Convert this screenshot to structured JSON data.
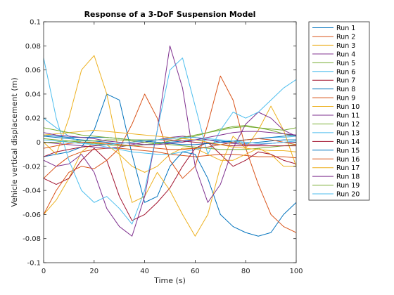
{
  "chart_data": {
    "type": "line",
    "title": "Response of a 3-DoF Suspension Model",
    "xlabel": "Time (s)",
    "ylabel": "Vehicle vertical displacement (m)",
    "xlim": [
      0,
      100
    ],
    "ylim": [
      -0.1,
      0.1
    ],
    "xticks": [
      0,
      20,
      40,
      60,
      80,
      100
    ],
    "xtick_labels": [
      "0",
      "20",
      "40",
      "60",
      "80",
      "100"
    ],
    "yticks": [
      -0.1,
      -0.08,
      -0.06,
      -0.04,
      -0.02,
      0,
      0.02,
      0.04,
      0.06,
      0.08,
      0.1
    ],
    "ytick_labels": [
      "-0.1",
      "-0.08",
      "-0.06",
      "-0.04",
      "-0.02",
      "0",
      "0.02",
      "0.04",
      "0.06",
      "0.08",
      "0.1"
    ],
    "grid": false,
    "legend_position": "outside-right",
    "series": [
      {
        "name": "Run 1",
        "color": "#0072BD",
        "x": [
          0,
          5,
          10,
          15,
          20,
          25,
          30,
          35,
          40,
          45,
          50,
          55,
          60,
          65,
          70,
          75,
          80,
          85,
          90,
          95,
          100
        ],
        "y": [
          0.005,
          0.004,
          0.003,
          0.002,
          0.001,
          0.0,
          -0.002,
          -0.003,
          -0.002,
          -0.001,
          0.0,
          0.001,
          0.002,
          0.002,
          0.001,
          0.0,
          -0.001,
          0.0,
          0.001,
          0.002,
          0.002
        ]
      },
      {
        "name": "Run 2",
        "color": "#D95319",
        "x": [
          0,
          5,
          10,
          15,
          20,
          25,
          30,
          35,
          40,
          45,
          50,
          55,
          60,
          65,
          70,
          75,
          80,
          85,
          90,
          95,
          100
        ],
        "y": [
          -0.03,
          -0.02,
          -0.012,
          -0.008,
          -0.006,
          -0.005,
          -0.005,
          -0.006,
          -0.007,
          -0.008,
          -0.01,
          -0.011,
          -0.012,
          -0.011,
          -0.01,
          -0.01,
          -0.011,
          -0.012,
          -0.012,
          -0.012,
          -0.013
        ]
      },
      {
        "name": "Run 3",
        "color": "#EDB120",
        "x": [
          0,
          5,
          10,
          15,
          20,
          25,
          30,
          35,
          40,
          45,
          50,
          55,
          60,
          65,
          70,
          75,
          80,
          85,
          90,
          95,
          100
        ],
        "y": [
          -0.06,
          -0.048,
          -0.03,
          -0.008,
          0.0,
          -0.002,
          -0.01,
          -0.02,
          -0.025,
          -0.02,
          -0.01,
          -0.005,
          -0.005,
          -0.01,
          -0.015,
          -0.015,
          -0.01,
          -0.005,
          -0.01,
          -0.02,
          -0.02
        ]
      },
      {
        "name": "Run 4",
        "color": "#7E2F8E",
        "x": [
          0,
          5,
          10,
          15,
          20,
          25,
          30,
          35,
          40,
          45,
          50,
          55,
          60,
          65,
          70,
          75,
          80,
          85,
          90,
          95,
          100
        ],
        "y": [
          0.0,
          -0.001,
          -0.002,
          -0.003,
          -0.004,
          -0.005,
          -0.004,
          -0.002,
          0.0,
          0.002,
          0.004,
          0.005,
          0.004,
          0.002,
          0.0,
          -0.001,
          -0.002,
          -0.002,
          -0.001,
          0.0,
          0.0
        ]
      },
      {
        "name": "Run 5",
        "color": "#77AC30",
        "x": [
          0,
          5,
          10,
          15,
          20,
          25,
          30,
          35,
          40,
          45,
          50,
          55,
          60,
          65,
          70,
          75,
          80,
          85,
          90,
          95,
          100
        ],
        "y": [
          0.003,
          0.002,
          0.001,
          0.0,
          -0.001,
          -0.002,
          -0.003,
          -0.003,
          -0.002,
          -0.001,
          0.001,
          0.003,
          0.005,
          0.008,
          0.011,
          0.013,
          0.014,
          0.012,
          0.01,
          0.007,
          0.005
        ]
      },
      {
        "name": "Run 6",
        "color": "#4DBEEE",
        "x": [
          0,
          5,
          10,
          15,
          20,
          25,
          30,
          35,
          40,
          45,
          50,
          55,
          60,
          65,
          70,
          75,
          80,
          85,
          90,
          95,
          100
        ],
        "y": [
          0.02,
          0.012,
          0.005,
          0.0,
          -0.002,
          -0.004,
          -0.006,
          -0.008,
          -0.009,
          -0.01,
          -0.01,
          -0.008,
          -0.006,
          -0.004,
          -0.002,
          0.0,
          0.002,
          0.003,
          0.004,
          0.004,
          0.005
        ]
      },
      {
        "name": "Run 7",
        "color": "#A2142F",
        "x": [
          0,
          5,
          10,
          15,
          20,
          25,
          30,
          35,
          40,
          45,
          50,
          55,
          60,
          65,
          70,
          75,
          80,
          85,
          90,
          95,
          100
        ],
        "y": [
          -0.03,
          -0.035,
          -0.03,
          -0.015,
          -0.005,
          -0.015,
          -0.045,
          -0.065,
          -0.06,
          -0.05,
          -0.038,
          -0.02,
          -0.005,
          0.0,
          -0.01,
          -0.02,
          -0.015,
          -0.008,
          -0.01,
          -0.015,
          -0.018
        ]
      },
      {
        "name": "Run 8",
        "color": "#0072BD",
        "x": [
          0,
          5,
          10,
          15,
          20,
          25,
          30,
          35,
          40,
          45,
          50,
          55,
          60,
          65,
          70,
          75,
          80,
          85,
          90,
          95,
          100
        ],
        "y": [
          -0.012,
          -0.01,
          -0.008,
          -0.004,
          0.01,
          0.04,
          0.035,
          -0.01,
          -0.05,
          -0.045,
          -0.02,
          -0.008,
          -0.01,
          -0.03,
          -0.06,
          -0.07,
          -0.075,
          -0.078,
          -0.075,
          -0.06,
          -0.05
        ]
      },
      {
        "name": "Run 9",
        "color": "#D95319",
        "x": [
          0,
          5,
          10,
          15,
          20,
          25,
          30,
          35,
          40,
          45,
          50,
          55,
          60,
          65,
          70,
          75,
          80,
          85,
          90,
          95,
          100
        ],
        "y": [
          -0.06,
          -0.04,
          -0.025,
          -0.02,
          -0.022,
          -0.015,
          -0.005,
          0.015,
          0.04,
          0.02,
          -0.015,
          -0.03,
          -0.02,
          0.015,
          0.055,
          0.035,
          -0.005,
          -0.035,
          -0.06,
          -0.07,
          -0.075
        ]
      },
      {
        "name": "Run 10",
        "color": "#EDB120",
        "x": [
          0,
          5,
          10,
          15,
          20,
          25,
          30,
          35,
          40,
          45,
          50,
          55,
          60,
          65,
          70,
          75,
          80,
          85,
          90,
          95,
          100
        ],
        "y": [
          0.0,
          -0.01,
          0.02,
          0.06,
          0.072,
          0.04,
          -0.01,
          -0.05,
          -0.045,
          -0.025,
          -0.04,
          -0.06,
          -0.078,
          -0.06,
          -0.02,
          0.005,
          -0.005,
          0.01,
          0.03,
          0.01,
          -0.02
        ]
      },
      {
        "name": "Run 11",
        "color": "#7E2F8E",
        "x": [
          0,
          5,
          10,
          15,
          20,
          25,
          30,
          35,
          40,
          45,
          50,
          55,
          60,
          65,
          70,
          75,
          80,
          85,
          90,
          95,
          100
        ],
        "y": [
          -0.015,
          -0.02,
          -0.018,
          -0.01,
          -0.025,
          -0.055,
          -0.07,
          -0.078,
          -0.045,
          0.01,
          0.08,
          0.045,
          -0.02,
          -0.05,
          -0.035,
          -0.005,
          0.015,
          0.025,
          0.02,
          0.01,
          0.005
        ]
      },
      {
        "name": "Run 12",
        "color": "#77AC30",
        "x": [
          0,
          5,
          10,
          15,
          20,
          25,
          30,
          35,
          40,
          45,
          50,
          55,
          60,
          65,
          70,
          75,
          80,
          85,
          90,
          95,
          100
        ],
        "y": [
          0.0,
          0.0,
          0.001,
          0.001,
          0.001,
          0.002,
          0.002,
          0.001,
          0.0,
          -0.001,
          -0.002,
          -0.003,
          -0.004,
          -0.005,
          -0.006,
          -0.006,
          -0.006,
          -0.005,
          -0.004,
          -0.003,
          -0.002
        ]
      },
      {
        "name": "Run 13",
        "color": "#4DBEEE",
        "x": [
          0,
          5,
          10,
          15,
          20,
          25,
          30,
          35,
          40,
          45,
          50,
          55,
          60,
          65,
          70,
          75,
          80,
          85,
          90,
          95,
          100
        ],
        "y": [
          0.07,
          0.02,
          -0.015,
          -0.04,
          -0.05,
          -0.045,
          -0.055,
          -0.068,
          -0.04,
          0.01,
          0.06,
          0.07,
          0.03,
          -0.01,
          0.01,
          0.025,
          0.02,
          0.025,
          0.035,
          0.045,
          0.052
        ]
      },
      {
        "name": "Run 14",
        "color": "#A2142F",
        "x": [
          0,
          5,
          10,
          15,
          20,
          25,
          30,
          35,
          40,
          45,
          50,
          55,
          60,
          65,
          70,
          75,
          80,
          85,
          90,
          95,
          100
        ],
        "y": [
          -0.012,
          -0.008,
          -0.006,
          -0.004,
          -0.003,
          -0.002,
          -0.001,
          0.0,
          0.001,
          0.002,
          0.002,
          0.001,
          0.0,
          -0.001,
          -0.002,
          -0.003,
          -0.003,
          -0.003,
          -0.003,
          -0.003,
          -0.003
        ]
      },
      {
        "name": "Run 15",
        "color": "#0072BD",
        "x": [
          0,
          5,
          10,
          15,
          20,
          25,
          30,
          35,
          40,
          45,
          50,
          55,
          60,
          65,
          70,
          75,
          80,
          85,
          90,
          95,
          100
        ],
        "y": [
          0.006,
          0.005,
          0.004,
          0.004,
          0.004,
          0.004,
          0.003,
          0.002,
          0.001,
          0.0,
          -0.001,
          -0.002,
          -0.002,
          -0.001,
          0.0,
          0.001,
          0.002,
          0.003,
          0.004,
          0.005,
          0.006
        ]
      },
      {
        "name": "Run 16",
        "color": "#D95319",
        "x": [
          0,
          5,
          10,
          15,
          20,
          25,
          30,
          35,
          40,
          45,
          50,
          55,
          60,
          65,
          70,
          75,
          80,
          85,
          90,
          95,
          100
        ],
        "y": [
          -0.005,
          -0.003,
          -0.001,
          0.0,
          0.0,
          -0.001,
          -0.002,
          -0.003,
          -0.004,
          -0.005,
          -0.006,
          -0.006,
          -0.005,
          -0.004,
          -0.002,
          0.0,
          0.002,
          0.003,
          0.002,
          0.0,
          -0.002
        ]
      },
      {
        "name": "Run 17",
        "color": "#EDB120",
        "x": [
          0,
          5,
          10,
          15,
          20,
          25,
          30,
          35,
          40,
          45,
          50,
          55,
          60,
          65,
          70,
          75,
          80,
          85,
          90,
          95,
          100
        ],
        "y": [
          0.006,
          0.007,
          0.008,
          0.009,
          0.01,
          0.009,
          0.008,
          0.007,
          0.006,
          0.005,
          0.004,
          0.003,
          0.002,
          0.0,
          -0.002,
          -0.004,
          -0.005,
          -0.006,
          -0.007,
          -0.007,
          -0.008
        ]
      },
      {
        "name": "Run 18",
        "color": "#7E2F8E",
        "x": [
          0,
          5,
          10,
          15,
          20,
          25,
          30,
          35,
          40,
          45,
          50,
          55,
          60,
          65,
          70,
          75,
          80,
          85,
          90,
          95,
          100
        ],
        "y": [
          0.008,
          0.006,
          0.005,
          0.004,
          0.003,
          0.001,
          0.0,
          -0.001,
          -0.002,
          -0.002,
          -0.001,
          0.0,
          0.002,
          0.004,
          0.006,
          0.008,
          0.009,
          0.009,
          0.008,
          0.007,
          0.006
        ]
      },
      {
        "name": "Run 19",
        "color": "#77AC30",
        "x": [
          0,
          5,
          10,
          15,
          20,
          25,
          30,
          35,
          40,
          45,
          50,
          55,
          60,
          65,
          70,
          75,
          80,
          85,
          90,
          95,
          100
        ],
        "y": [
          0.012,
          0.01,
          0.008,
          0.006,
          0.005,
          0.004,
          0.003,
          0.002,
          0.002,
          0.002,
          0.003,
          0.004,
          0.006,
          0.008,
          0.01,
          0.012,
          0.013,
          0.012,
          0.011,
          0.01,
          0.012
        ]
      },
      {
        "name": "Run 20",
        "color": "#4DBEEE",
        "x": [
          0,
          5,
          10,
          15,
          20,
          25,
          30,
          35,
          40,
          45,
          50,
          55,
          60,
          65,
          70,
          75,
          80,
          85,
          90,
          95,
          100
        ],
        "y": [
          0.002,
          0.001,
          0.0,
          -0.001,
          -0.002,
          -0.002,
          -0.001,
          0.0,
          0.001,
          0.002,
          0.003,
          0.004,
          0.004,
          0.003,
          0.002,
          0.001,
          0.0,
          -0.001,
          -0.001,
          0.0,
          0.001
        ]
      }
    ]
  }
}
